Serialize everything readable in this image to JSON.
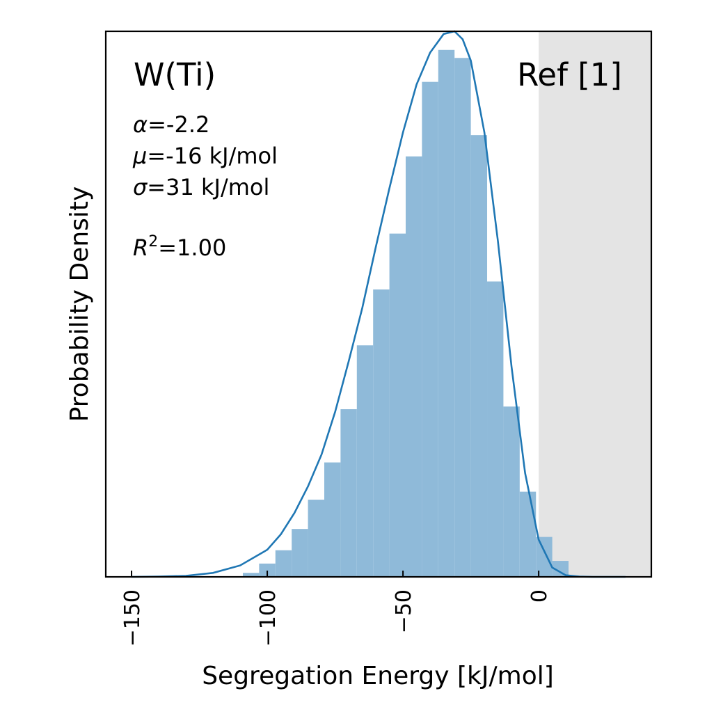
{
  "chart_data": {
    "type": "bar",
    "title": "W(Ti)",
    "reference": "Ref [1]",
    "annotations": [
      "α=-2.2",
      "μ=-16 kJ/mol",
      "σ=31 kJ/mol",
      "R²=1.00"
    ],
    "xlabel": "Segregation Energy [kJ/mol]",
    "ylabel": "Probability Density",
    "xlim": [
      -159.5,
      41.5
    ],
    "ylim": [
      0,
      0.0205
    ],
    "xticks": [
      -150,
      -100,
      -50,
      0
    ],
    "xtick_labels": [
      "−150",
      "−100",
      "−50",
      "0"
    ],
    "shaded_region": [
      0,
      41.5
    ],
    "grid": false,
    "histogram": {
      "bin_edges": [
        -109,
        -103,
        -97,
        -91,
        -85,
        -79,
        -73,
        -67,
        -61,
        -55,
        -49,
        -43,
        -37,
        -31,
        -25,
        -19,
        -13,
        -7,
        -1,
        5,
        11
      ],
      "values": [
        0.00015,
        0.0005,
        0.001,
        0.0018,
        0.0029,
        0.0043,
        0.0063,
        0.0087,
        0.0108,
        0.0129,
        0.0158,
        0.0186,
        0.0198,
        0.0195,
        0.0166,
        0.0111,
        0.0064,
        0.0032,
        0.0015,
        0.0006
      ]
    },
    "series": [
      {
        "type": "line",
        "x": [
          -150,
          -140,
          -130,
          -120,
          -110,
          -100,
          -95,
          -90,
          -85,
          -80,
          -75,
          -70,
          -65,
          -60,
          -55,
          -50,
          -45,
          -40,
          -35,
          -31,
          -28,
          -25,
          -20,
          -15,
          -10,
          -5,
          0,
          5,
          10,
          15,
          20,
          25,
          32
        ],
        "values": [
          0,
          1e-05,
          4e-05,
          0.00015,
          0.00043,
          0.00102,
          0.0016,
          0.0024,
          0.0034,
          0.0046,
          0.0062,
          0.0081,
          0.0101,
          0.0124,
          0.0146,
          0.0167,
          0.0185,
          0.0197,
          0.0204,
          0.0205,
          0.0202,
          0.0194,
          0.0167,
          0.0126,
          0.0079,
          0.0039,
          0.0014,
          0.00035,
          6e-05,
          1e-05,
          0,
          0,
          0
        ]
      }
    ],
    "colors": {
      "bars": "#8fbad9",
      "line": "#1f77b4",
      "shade": "#e4e4e4"
    }
  }
}
